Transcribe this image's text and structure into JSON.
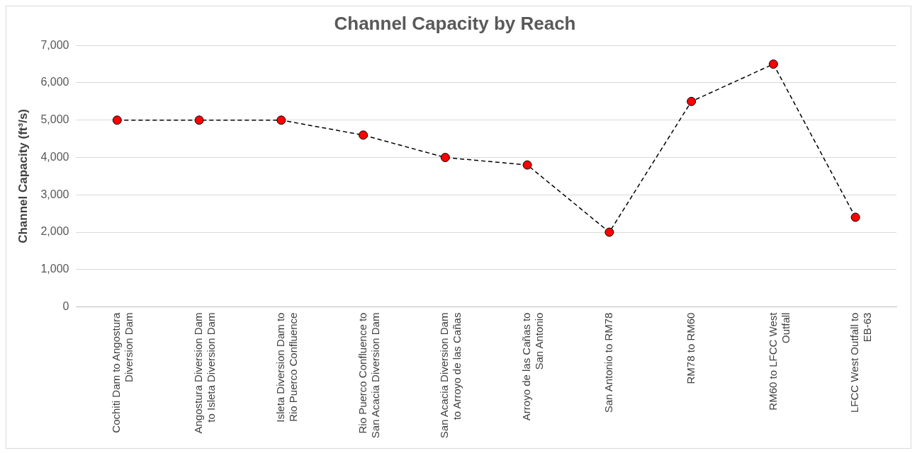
{
  "chart_data": {
    "type": "line",
    "title": "Channel Capacity by Reach",
    "ylabel": "Channel Capacity (ft³/s)",
    "categories": [
      "Cochiti Dam to Angostura Diversion Dam",
      "Angostura Diversion Dam to Isleta Diversion Dam",
      "Isleta Diversion Dam to Rio Puerco Confluence",
      "Rio Puerco Confluence to San Acacia Diversion Dam",
      "San Acacia Diversion Dam to Arroyo de las Cañas",
      "Arroyo de las Cañas to San Antonio",
      "San Antonio to RM78",
      "RM78 to RM60",
      "RM60 to LFCC West Outfall",
      "LFCC West Outfall to EB-63"
    ],
    "series": [
      {
        "color": "#ff0000",
        "values": [
          5000,
          5000,
          5000,
          4600,
          4000,
          3800,
          2000,
          5500,
          6500,
          2400
        ]
      }
    ],
    "ylim": [
      0,
      7000
    ],
    "yticks": [
      {
        "value": 0,
        "label": "0"
      },
      {
        "value": 1000,
        "label": "1,000"
      },
      {
        "value": 2000,
        "label": "2,000"
      },
      {
        "value": 3000,
        "label": "3,000"
      },
      {
        "value": 4000,
        "label": "4,000"
      },
      {
        "value": 5000,
        "label": "5,000"
      },
      {
        "value": 6000,
        "label": "6,000"
      },
      {
        "value": 7000,
        "label": "7,000"
      }
    ],
    "grid": "y",
    "marker": "circle",
    "line_style": "dashed"
  }
}
